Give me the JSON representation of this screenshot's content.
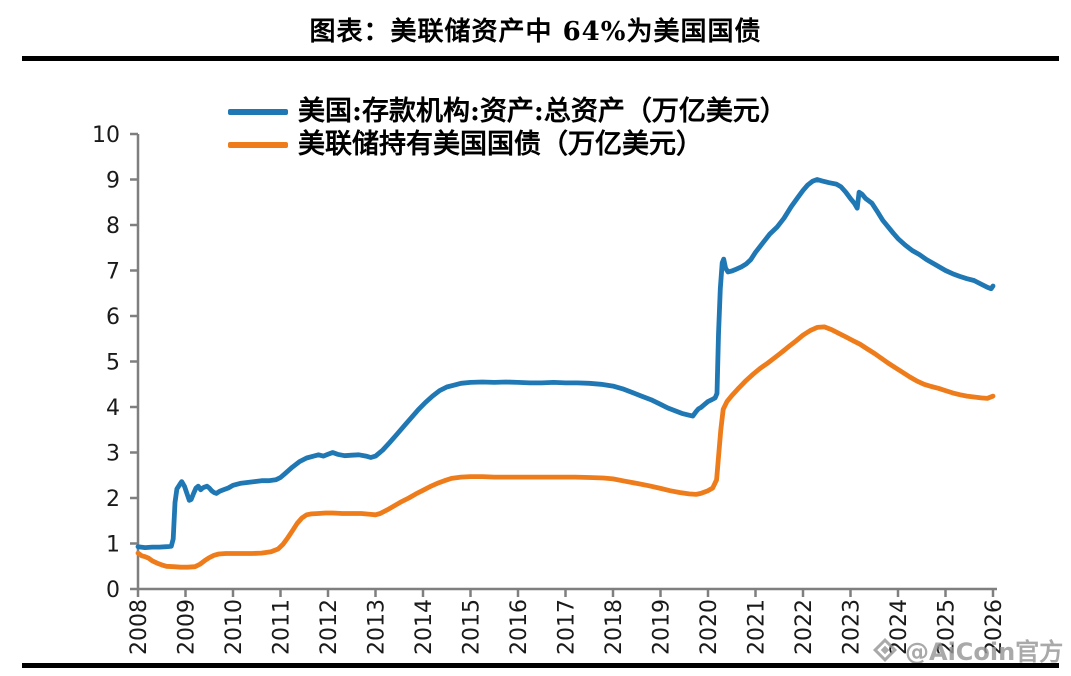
{
  "title": "图表：美联储资产中 64%为美国国债",
  "watermark": {
    "icon": "aicoin-diamond-logo",
    "text": "@AiCoin官方"
  },
  "chart_data": {
    "type": "line",
    "title": "图表：美联储资产中 64%为美国国债",
    "xlabel": "",
    "ylabel": "",
    "unit": "万亿美元",
    "xlim": [
      2008,
      2026.1
    ],
    "ylim": [
      0,
      10
    ],
    "y_ticks": [
      0,
      1,
      2,
      3,
      4,
      5,
      6,
      7,
      8,
      9,
      10
    ],
    "x_ticks": [
      2008,
      2009,
      2010,
      2011,
      2012,
      2013,
      2014,
      2015,
      2016,
      2017,
      2018,
      2019,
      2020,
      2021,
      2022,
      2023,
      2024,
      2025,
      2026
    ],
    "x_tick_rotation": 90,
    "grid": false,
    "legend_position": "top-left",
    "axis_color": "#7f7f7f",
    "series": [
      {
        "name": "美国:存款机构:资产:总资产（万亿美元）",
        "color": "#1f77b4",
        "points": [
          [
            2008.0,
            0.93
          ],
          [
            2008.15,
            0.91
          ],
          [
            2008.3,
            0.92
          ],
          [
            2008.45,
            0.92
          ],
          [
            2008.6,
            0.93
          ],
          [
            2008.7,
            0.94
          ],
          [
            2008.74,
            1.1
          ],
          [
            2008.78,
            1.9
          ],
          [
            2008.82,
            2.2
          ],
          [
            2008.88,
            2.3
          ],
          [
            2008.92,
            2.36
          ],
          [
            2008.98,
            2.25
          ],
          [
            2009.03,
            2.1
          ],
          [
            2009.08,
            1.95
          ],
          [
            2009.12,
            1.97
          ],
          [
            2009.17,
            2.1
          ],
          [
            2009.22,
            2.22
          ],
          [
            2009.27,
            2.26
          ],
          [
            2009.32,
            2.18
          ],
          [
            2009.36,
            2.22
          ],
          [
            2009.4,
            2.24
          ],
          [
            2009.45,
            2.26
          ],
          [
            2009.5,
            2.22
          ],
          [
            2009.55,
            2.16
          ],
          [
            2009.6,
            2.12
          ],
          [
            2009.65,
            2.1
          ],
          [
            2009.72,
            2.15
          ],
          [
            2009.8,
            2.18
          ],
          [
            2009.9,
            2.22
          ],
          [
            2010.0,
            2.28
          ],
          [
            2010.15,
            2.32
          ],
          [
            2010.3,
            2.34
          ],
          [
            2010.45,
            2.36
          ],
          [
            2010.6,
            2.38
          ],
          [
            2010.75,
            2.38
          ],
          [
            2010.9,
            2.4
          ],
          [
            2011.0,
            2.45
          ],
          [
            2011.1,
            2.54
          ],
          [
            2011.25,
            2.68
          ],
          [
            2011.4,
            2.8
          ],
          [
            2011.55,
            2.88
          ],
          [
            2011.7,
            2.92
          ],
          [
            2011.8,
            2.95
          ],
          [
            2011.9,
            2.92
          ],
          [
            2012.0,
            2.96
          ],
          [
            2012.1,
            3.0
          ],
          [
            2012.2,
            2.96
          ],
          [
            2012.35,
            2.93
          ],
          [
            2012.5,
            2.94
          ],
          [
            2012.65,
            2.95
          ],
          [
            2012.8,
            2.92
          ],
          [
            2012.9,
            2.89
          ],
          [
            2013.0,
            2.92
          ],
          [
            2013.15,
            3.05
          ],
          [
            2013.3,
            3.22
          ],
          [
            2013.45,
            3.4
          ],
          [
            2013.6,
            3.58
          ],
          [
            2013.75,
            3.76
          ],
          [
            2013.9,
            3.94
          ],
          [
            2014.05,
            4.1
          ],
          [
            2014.2,
            4.24
          ],
          [
            2014.35,
            4.36
          ],
          [
            2014.5,
            4.44
          ],
          [
            2014.65,
            4.48
          ],
          [
            2014.8,
            4.52
          ],
          [
            2015.0,
            4.54
          ],
          [
            2015.25,
            4.55
          ],
          [
            2015.5,
            4.54
          ],
          [
            2015.75,
            4.55
          ],
          [
            2016.0,
            4.54
          ],
          [
            2016.25,
            4.53
          ],
          [
            2016.5,
            4.53
          ],
          [
            2016.75,
            4.54
          ],
          [
            2017.0,
            4.53
          ],
          [
            2017.25,
            4.53
          ],
          [
            2017.5,
            4.52
          ],
          [
            2017.75,
            4.5
          ],
          [
            2018.0,
            4.46
          ],
          [
            2018.2,
            4.4
          ],
          [
            2018.4,
            4.32
          ],
          [
            2018.6,
            4.24
          ],
          [
            2018.8,
            4.16
          ],
          [
            2019.0,
            4.06
          ],
          [
            2019.15,
            3.98
          ],
          [
            2019.3,
            3.92
          ],
          [
            2019.45,
            3.86
          ],
          [
            2019.6,
            3.82
          ],
          [
            2019.68,
            3.8
          ],
          [
            2019.75,
            3.9
          ],
          [
            2019.8,
            3.96
          ],
          [
            2019.85,
            3.99
          ],
          [
            2019.92,
            4.05
          ],
          [
            2020.0,
            4.12
          ],
          [
            2020.08,
            4.16
          ],
          [
            2020.15,
            4.2
          ],
          [
            2020.19,
            4.3
          ],
          [
            2020.22,
            5.6
          ],
          [
            2020.26,
            6.6
          ],
          [
            2020.3,
            7.17
          ],
          [
            2020.33,
            7.25
          ],
          [
            2020.37,
            7.05
          ],
          [
            2020.42,
            6.97
          ],
          [
            2020.5,
            6.99
          ],
          [
            2020.6,
            7.03
          ],
          [
            2020.7,
            7.08
          ],
          [
            2020.8,
            7.14
          ],
          [
            2020.9,
            7.24
          ],
          [
            2021.0,
            7.4
          ],
          [
            2021.15,
            7.6
          ],
          [
            2021.3,
            7.8
          ],
          [
            2021.45,
            7.95
          ],
          [
            2021.6,
            8.15
          ],
          [
            2021.75,
            8.4
          ],
          [
            2021.9,
            8.62
          ],
          [
            2022.0,
            8.76
          ],
          [
            2022.1,
            8.88
          ],
          [
            2022.2,
            8.96
          ],
          [
            2022.3,
            9.0
          ],
          [
            2022.4,
            8.97
          ],
          [
            2022.55,
            8.93
          ],
          [
            2022.7,
            8.9
          ],
          [
            2022.8,
            8.84
          ],
          [
            2022.9,
            8.72
          ],
          [
            2023.0,
            8.58
          ],
          [
            2023.08,
            8.48
          ],
          [
            2023.14,
            8.37
          ],
          [
            2023.18,
            8.72
          ],
          [
            2023.24,
            8.68
          ],
          [
            2023.32,
            8.58
          ],
          [
            2023.45,
            8.48
          ],
          [
            2023.55,
            8.32
          ],
          [
            2023.68,
            8.1
          ],
          [
            2023.8,
            7.95
          ],
          [
            2023.9,
            7.82
          ],
          [
            2024.0,
            7.7
          ],
          [
            2024.15,
            7.56
          ],
          [
            2024.3,
            7.44
          ],
          [
            2024.45,
            7.35
          ],
          [
            2024.6,
            7.24
          ],
          [
            2024.8,
            7.12
          ],
          [
            2025.0,
            7.0
          ],
          [
            2025.15,
            6.93
          ],
          [
            2025.3,
            6.87
          ],
          [
            2025.45,
            6.82
          ],
          [
            2025.6,
            6.78
          ],
          [
            2025.75,
            6.7
          ],
          [
            2025.88,
            6.63
          ],
          [
            2025.96,
            6.6
          ],
          [
            2026.0,
            6.66
          ]
        ]
      },
      {
        "name": "美联储持有美国国债（万亿美元）",
        "color": "#ee7c1b",
        "points": [
          [
            2008.0,
            0.79
          ],
          [
            2008.08,
            0.73
          ],
          [
            2008.15,
            0.71
          ],
          [
            2008.22,
            0.68
          ],
          [
            2008.3,
            0.62
          ],
          [
            2008.4,
            0.57
          ],
          [
            2008.5,
            0.53
          ],
          [
            2008.6,
            0.5
          ],
          [
            2008.75,
            0.49
          ],
          [
            2008.9,
            0.48
          ],
          [
            2009.05,
            0.48
          ],
          [
            2009.2,
            0.49
          ],
          [
            2009.3,
            0.54
          ],
          [
            2009.4,
            0.62
          ],
          [
            2009.5,
            0.69
          ],
          [
            2009.6,
            0.74
          ],
          [
            2009.7,
            0.77
          ],
          [
            2009.85,
            0.78
          ],
          [
            2010.0,
            0.78
          ],
          [
            2010.2,
            0.78
          ],
          [
            2010.4,
            0.78
          ],
          [
            2010.6,
            0.79
          ],
          [
            2010.8,
            0.82
          ],
          [
            2010.95,
            0.88
          ],
          [
            2011.05,
            0.98
          ],
          [
            2011.15,
            1.12
          ],
          [
            2011.25,
            1.28
          ],
          [
            2011.35,
            1.44
          ],
          [
            2011.45,
            1.56
          ],
          [
            2011.55,
            1.63
          ],
          [
            2011.65,
            1.65
          ],
          [
            2011.8,
            1.66
          ],
          [
            2011.95,
            1.67
          ],
          [
            2012.1,
            1.67
          ],
          [
            2012.3,
            1.66
          ],
          [
            2012.5,
            1.66
          ],
          [
            2012.7,
            1.66
          ],
          [
            2012.9,
            1.64
          ],
          [
            2013.0,
            1.63
          ],
          [
            2013.1,
            1.66
          ],
          [
            2013.25,
            1.74
          ],
          [
            2013.4,
            1.83
          ],
          [
            2013.55,
            1.92
          ],
          [
            2013.7,
            2.0
          ],
          [
            2013.85,
            2.09
          ],
          [
            2014.0,
            2.17
          ],
          [
            2014.15,
            2.25
          ],
          [
            2014.3,
            2.32
          ],
          [
            2014.45,
            2.38
          ],
          [
            2014.6,
            2.43
          ],
          [
            2014.8,
            2.46
          ],
          [
            2015.0,
            2.47
          ],
          [
            2015.25,
            2.47
          ],
          [
            2015.5,
            2.46
          ],
          [
            2015.75,
            2.46
          ],
          [
            2016.0,
            2.46
          ],
          [
            2016.3,
            2.46
          ],
          [
            2016.6,
            2.46
          ],
          [
            2016.9,
            2.46
          ],
          [
            2017.2,
            2.46
          ],
          [
            2017.5,
            2.45
          ],
          [
            2017.8,
            2.44
          ],
          [
            2018.0,
            2.42
          ],
          [
            2018.25,
            2.37
          ],
          [
            2018.5,
            2.32
          ],
          [
            2018.75,
            2.27
          ],
          [
            2019.0,
            2.21
          ],
          [
            2019.2,
            2.16
          ],
          [
            2019.4,
            2.12
          ],
          [
            2019.6,
            2.09
          ],
          [
            2019.75,
            2.08
          ],
          [
            2019.85,
            2.1
          ],
          [
            2020.0,
            2.16
          ],
          [
            2020.1,
            2.22
          ],
          [
            2020.18,
            2.4
          ],
          [
            2020.22,
            2.9
          ],
          [
            2020.27,
            3.5
          ],
          [
            2020.32,
            3.95
          ],
          [
            2020.4,
            4.12
          ],
          [
            2020.5,
            4.25
          ],
          [
            2020.65,
            4.42
          ],
          [
            2020.8,
            4.58
          ],
          [
            2020.95,
            4.72
          ],
          [
            2021.1,
            4.85
          ],
          [
            2021.25,
            4.96
          ],
          [
            2021.4,
            5.08
          ],
          [
            2021.55,
            5.2
          ],
          [
            2021.7,
            5.33
          ],
          [
            2021.85,
            5.45
          ],
          [
            2022.0,
            5.58
          ],
          [
            2022.15,
            5.68
          ],
          [
            2022.3,
            5.75
          ],
          [
            2022.45,
            5.76
          ],
          [
            2022.6,
            5.7
          ],
          [
            2022.75,
            5.62
          ],
          [
            2022.9,
            5.54
          ],
          [
            2023.05,
            5.46
          ],
          [
            2023.2,
            5.38
          ],
          [
            2023.35,
            5.28
          ],
          [
            2023.5,
            5.18
          ],
          [
            2023.65,
            5.07
          ],
          [
            2023.8,
            4.96
          ],
          [
            2023.95,
            4.86
          ],
          [
            2024.1,
            4.76
          ],
          [
            2024.25,
            4.66
          ],
          [
            2024.4,
            4.57
          ],
          [
            2024.55,
            4.5
          ],
          [
            2024.7,
            4.45
          ],
          [
            2024.85,
            4.41
          ],
          [
            2025.0,
            4.36
          ],
          [
            2025.15,
            4.31
          ],
          [
            2025.3,
            4.27
          ],
          [
            2025.45,
            4.24
          ],
          [
            2025.6,
            4.22
          ],
          [
            2025.75,
            4.2
          ],
          [
            2025.88,
            4.19
          ],
          [
            2026.0,
            4.24
          ]
        ]
      }
    ]
  }
}
